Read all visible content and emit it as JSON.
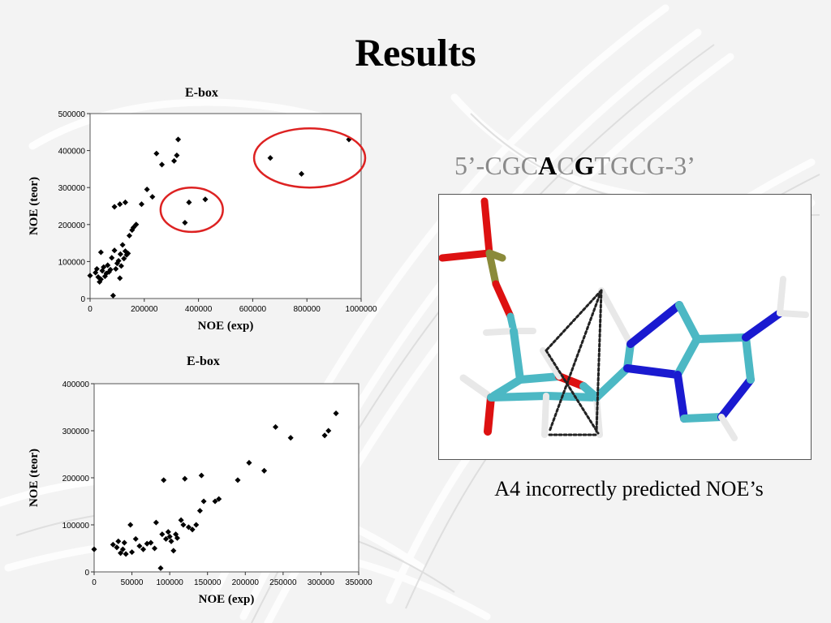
{
  "slide": {
    "title": "Results",
    "sequence": {
      "prefix": "5’-CGC",
      "bold1": "A",
      "mid": "C",
      "bold2": "G",
      "suffix": "TGCG-3’"
    },
    "caption": "A4 incorrectly predicted NOE’s"
  },
  "colors": {
    "highlight": "#dd2222",
    "marker": "#000000",
    "carbon": "#4cb8c4",
    "nitrogen": "#1a1ad0",
    "oxygen": "#dd1111",
    "phosphorus": "#8a8a3a",
    "hydrogen": "#e8e8e8"
  },
  "chart_data": [
    {
      "type": "scatter",
      "title": "E-box",
      "xlabel": "NOE (exp)",
      "ylabel": "NOE (teor)",
      "xlim": [
        0,
        1000000
      ],
      "ylim": [
        0,
        500000
      ],
      "xticks": [
        0,
        200000,
        400000,
        600000,
        800000,
        1000000
      ],
      "yticks": [
        0,
        100000,
        200000,
        300000,
        400000,
        500000
      ],
      "xtick_labels": [
        "0",
        "200000",
        "400000",
        "600000",
        "800000",
        "1000000"
      ],
      "ytick_labels": [
        "0",
        "100000",
        "200000",
        "300000",
        "400000",
        "500000"
      ],
      "grid": false,
      "legend": "none",
      "annotations": [
        {
          "shape": "ellipse",
          "cx": 375000,
          "cy": 240000,
          "rx": 115000,
          "ry": 60000
        },
        {
          "shape": "ellipse",
          "cx": 810000,
          "cy": 380000,
          "rx": 205000,
          "ry": 80000
        }
      ],
      "points": [
        [
          0,
          62000
        ],
        [
          20000,
          70000
        ],
        [
          25000,
          80000
        ],
        [
          30000,
          58000
        ],
        [
          35000,
          45000
        ],
        [
          40000,
          52000
        ],
        [
          45000,
          75000
        ],
        [
          50000,
          85000
        ],
        [
          55000,
          60000
        ],
        [
          60000,
          68000
        ],
        [
          65000,
          90000
        ],
        [
          70000,
          72000
        ],
        [
          75000,
          78000
        ],
        [
          80000,
          110000
        ],
        [
          85000,
          8000
        ],
        [
          90000,
          130000
        ],
        [
          95000,
          80000
        ],
        [
          100000,
          95000
        ],
        [
          105000,
          102000
        ],
        [
          110000,
          55000
        ],
        [
          112000,
          120000
        ],
        [
          115000,
          88000
        ],
        [
          120000,
          145000
        ],
        [
          125000,
          108000
        ],
        [
          130000,
          128000
        ],
        [
          135000,
          118000
        ],
        [
          140000,
          122000
        ],
        [
          40000,
          125000
        ],
        [
          90000,
          248000
        ],
        [
          110000,
          255000
        ],
        [
          130000,
          260000
        ],
        [
          145000,
          170000
        ],
        [
          155000,
          185000
        ],
        [
          160000,
          192000
        ],
        [
          170000,
          200000
        ],
        [
          190000,
          255000
        ],
        [
          210000,
          295000
        ],
        [
          230000,
          275000
        ],
        [
          245000,
          392000
        ],
        [
          265000,
          362000
        ],
        [
          310000,
          372000
        ],
        [
          320000,
          387000
        ],
        [
          325000,
          430000
        ],
        [
          350000,
          205000
        ],
        [
          365000,
          260000
        ],
        [
          425000,
          268000
        ],
        [
          665000,
          380000
        ],
        [
          780000,
          337000
        ],
        [
          955000,
          430000
        ]
      ]
    },
    {
      "type": "scatter",
      "title": "E-box",
      "xlabel": "NOE (exp)",
      "ylabel": "NOE (teor)",
      "xlim": [
        0,
        350000
      ],
      "ylim": [
        0,
        400000
      ],
      "xticks": [
        0,
        50000,
        100000,
        150000,
        200000,
        250000,
        300000,
        350000
      ],
      "yticks": [
        0,
        100000,
        200000,
        300000,
        400000
      ],
      "xtick_labels": [
        "0",
        "50000",
        "100000",
        "150000",
        "200000",
        "250000",
        "300000",
        "350000"
      ],
      "ytick_labels": [
        "0",
        "100000",
        "200000",
        "300000",
        "400000"
      ],
      "grid": false,
      "legend": "none",
      "points": [
        [
          0,
          48000
        ],
        [
          25000,
          58000
        ],
        [
          30000,
          52000
        ],
        [
          32000,
          65000
        ],
        [
          35000,
          40000
        ],
        [
          38000,
          48000
        ],
        [
          40000,
          62000
        ],
        [
          42000,
          38000
        ],
        [
          48000,
          100000
        ],
        [
          50000,
          42000
        ],
        [
          55000,
          70000
        ],
        [
          60000,
          55000
        ],
        [
          65000,
          48000
        ],
        [
          70000,
          60000
        ],
        [
          75000,
          62000
        ],
        [
          80000,
          50000
        ],
        [
          82000,
          105000
        ],
        [
          88000,
          8000
        ],
        [
          90000,
          80000
        ],
        [
          92000,
          195000
        ],
        [
          95000,
          70000
        ],
        [
          98000,
          85000
        ],
        [
          100000,
          75000
        ],
        [
          102000,
          65000
        ],
        [
          105000,
          45000
        ],
        [
          108000,
          80000
        ],
        [
          110000,
          72000
        ],
        [
          115000,
          110000
        ],
        [
          118000,
          100000
        ],
        [
          120000,
          198000
        ],
        [
          125000,
          95000
        ],
        [
          130000,
          90000
        ],
        [
          135000,
          100000
        ],
        [
          140000,
          130000
        ],
        [
          142000,
          205000
        ],
        [
          145000,
          150000
        ],
        [
          160000,
          150000
        ],
        [
          165000,
          155000
        ],
        [
          190000,
          195000
        ],
        [
          205000,
          232000
        ],
        [
          225000,
          215000
        ],
        [
          240000,
          308000
        ],
        [
          260000,
          285000
        ],
        [
          305000,
          290000
        ],
        [
          310000,
          300000
        ],
        [
          320000,
          337000
        ]
      ]
    }
  ]
}
